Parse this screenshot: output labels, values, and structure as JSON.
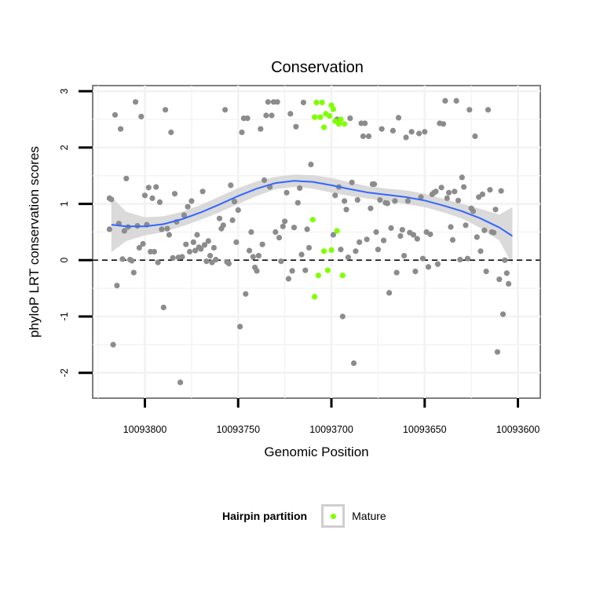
{
  "chart_data": {
    "type": "scatter",
    "title": "Conservation",
    "xlabel": "Genomic Position",
    "ylabel": "phyloP LRT conservation scores",
    "x_reversed": true,
    "xlim": [
      10093828,
      10093588
    ],
    "ylim": [
      -2.45,
      3.1
    ],
    "xticks": [
      10093800,
      10093750,
      10093700,
      10093650,
      10093600
    ],
    "xtick_labels": [
      "10093800",
      "10093750",
      "10093700",
      "10093650",
      "10093600"
    ],
    "yticks": [
      -2,
      -1,
      0,
      1,
      2,
      3
    ],
    "ytick_labels": [
      "-2",
      "-1",
      "0",
      "1",
      "2",
      "3"
    ],
    "hline": 0,
    "colors": {
      "other": "#8c8c8c",
      "mature": "#7fff00",
      "smooth": "#3366ff",
      "band": "#d3d3d3",
      "border": "#7f7f7f",
      "grid": "#f2f2f2"
    },
    "legend": {
      "title": "Hairpin partition",
      "entries": [
        "Mature"
      ],
      "placement": "bottom"
    },
    "series": [
      {
        "role": "other",
        "points": [
          [
            10093819,
            1.1
          ],
          [
            10093818,
            1.08
          ],
          [
            10093819,
            0.55
          ],
          [
            10093817,
            -1.5
          ],
          [
            10093816,
            2.58
          ],
          [
            10093815,
            -0.45
          ],
          [
            10093814,
            0.65
          ],
          [
            10093813,
            2.33
          ],
          [
            10093812,
            0.02
          ],
          [
            10093811,
            0.52
          ],
          [
            10093810,
            1.45
          ],
          [
            10093809,
            0.59
          ],
          [
            10093808,
            0.01
          ],
          [
            10093807,
            -0.01
          ],
          [
            10093806,
            -0.22
          ],
          [
            10093805,
            2.81
          ],
          [
            10093804,
            0.61
          ],
          [
            10093803,
            0.22
          ],
          [
            10093802,
            2.55
          ],
          [
            10093801,
            0.29
          ],
          [
            10093800,
            1.15
          ],
          [
            10093799,
            0.63
          ],
          [
            10093798,
            1.29
          ],
          [
            10093797,
            0.15
          ],
          [
            10093796,
            1.1
          ],
          [
            10093795,
            0.15
          ],
          [
            10093794,
            1.3
          ],
          [
            10093793,
            -0.04
          ],
          [
            10093792,
            1.03
          ],
          [
            10093791,
            0.55
          ],
          [
            10093790,
            -0.84
          ],
          [
            10093789,
            2.67
          ],
          [
            10093788,
            0.56
          ],
          [
            10093787,
            0.45
          ],
          [
            10093786,
            2.27
          ],
          [
            10093785,
            0.04
          ],
          [
            10093784,
            1.18
          ],
          [
            10093783,
            0.68
          ],
          [
            10093782,
            0.05
          ],
          [
            10093781,
            -2.17
          ],
          [
            10093780,
            0.06
          ],
          [
            10093779,
            0.8
          ],
          [
            10093778,
            0.28
          ],
          [
            10093777,
            0.95
          ],
          [
            10093776,
            0.15
          ],
          [
            10093775,
            1.05
          ],
          [
            10093774,
            0.32
          ],
          [
            10093773,
            0.17
          ],
          [
            10093772,
            0.45
          ],
          [
            10093771,
            0.23
          ],
          [
            10093770,
            0.2
          ],
          [
            10093769,
            1.22
          ],
          [
            10093768,
            0.27
          ],
          [
            10093767,
            -0.02
          ],
          [
            10093766,
            0.34
          ],
          [
            10093765,
            0.08
          ],
          [
            10093764,
            -0.04
          ],
          [
            10093763,
            0.22
          ],
          [
            10093762,
            0.01
          ],
          [
            10093760,
            0.74
          ],
          [
            10093759,
            0.56
          ],
          [
            10093758,
            0.62
          ],
          [
            10093757,
            2.67
          ],
          [
            10093756,
            -0.03
          ],
          [
            10093755,
            -0.06
          ],
          [
            10093754,
            1.33
          ],
          [
            10093753,
            0.71
          ],
          [
            10093752,
            1.04
          ],
          [
            10093751,
            0.32
          ],
          [
            10093750,
            0.89
          ],
          [
            10093749,
            -1.18
          ],
          [
            10093748,
            2.27
          ],
          [
            10093747,
            2.52
          ],
          [
            10093746,
            -0.6
          ],
          [
            10093745,
            2.52
          ],
          [
            10093744,
            0.17
          ],
          [
            10093743,
            0.5
          ],
          [
            10093742,
            0.06
          ],
          [
            10093741,
            -0.13
          ],
          [
            10093740,
            -0.19
          ],
          [
            10093739,
            0.08
          ],
          [
            10093738,
            2.33
          ],
          [
            10093737,
            0.28
          ],
          [
            10093736,
            1.42
          ],
          [
            10093735,
            2.57
          ],
          [
            10093734,
            2.81
          ],
          [
            10093733,
            1.3
          ],
          [
            10093732,
            2.57
          ],
          [
            10093731,
            2.81
          ],
          [
            10093730,
            0.5
          ],
          [
            10093729,
            2.81
          ],
          [
            10093728,
            0.4
          ],
          [
            10093727,
            -0.02
          ],
          [
            10093726,
            0.6
          ],
          [
            10093725,
            0.69
          ],
          [
            10093724,
            1.2
          ],
          [
            10093723,
            -0.33
          ],
          [
            10093722,
            2.6
          ],
          [
            10093721,
            -0.19
          ],
          [
            10093720,
            0.58
          ],
          [
            10093719,
            2.37
          ],
          [
            10093718,
            1.02
          ],
          [
            10093717,
            1.28
          ],
          [
            10093716,
            0.1
          ],
          [
            10093715,
            2.8
          ],
          [
            10093714,
            -0.18
          ],
          [
            10093713,
            0.55
          ],
          [
            10093712,
            0.22
          ],
          [
            10093711,
            1.7
          ],
          [
            10093699,
            0.45
          ],
          [
            10093698,
            1.15
          ],
          [
            10093697,
            2.5
          ],
          [
            10093696,
            1.3
          ],
          [
            10093695,
            0.19
          ],
          [
            10093694,
            -1.0
          ],
          [
            10093693,
            1.05
          ],
          [
            10093692,
            0.9
          ],
          [
            10093691,
            0.05
          ],
          [
            10093690,
            2.52
          ],
          [
            10093689,
            1.38
          ],
          [
            10093688,
            -1.83
          ],
          [
            10093687,
            0.16
          ],
          [
            10093686,
            1.07
          ],
          [
            10093685,
            0.32
          ],
          [
            10093684,
            2.43
          ],
          [
            10093683,
            2.2
          ],
          [
            10093682,
            2.43
          ],
          [
            10093681,
            0.37
          ],
          [
            10093680,
            2.2
          ],
          [
            10093679,
            0.92
          ],
          [
            10093678,
            1.35
          ],
          [
            10093677,
            1.35
          ],
          [
            10093676,
            0.5
          ],
          [
            10093675,
            0.19
          ],
          [
            10093674,
            1.07
          ],
          [
            10093673,
            2.33
          ],
          [
            10093672,
            0.35
          ],
          [
            10093671,
            1.02
          ],
          [
            10093670,
            1.01
          ],
          [
            10093669,
            -0.58
          ],
          [
            10093668,
            0.57
          ],
          [
            10093667,
            2.3
          ],
          [
            10093666,
            1.05
          ],
          [
            10093665,
            -0.22
          ],
          [
            10093664,
            2.53
          ],
          [
            10093663,
            0.43
          ],
          [
            10093662,
            0.54
          ],
          [
            10093661,
            0.08
          ],
          [
            10093660,
            2.18
          ],
          [
            10093659,
            1.05
          ],
          [
            10093658,
            0.49
          ],
          [
            10093657,
            2.28
          ],
          [
            10093656,
            0.45
          ],
          [
            10093655,
            -0.2
          ],
          [
            10093654,
            0.38
          ],
          [
            10093653,
            2.25
          ],
          [
            10093652,
            1.12
          ],
          [
            10093651,
            0.03
          ],
          [
            10093650,
            2.28
          ],
          [
            10093649,
            0.5
          ],
          [
            10093648,
            -0.12
          ],
          [
            10093647,
            0.46
          ],
          [
            10093646,
            1.17
          ],
          [
            10093645,
            1.2
          ],
          [
            10093644,
            1.22
          ],
          [
            10093643,
            -0.07
          ],
          [
            10093642,
            2.43
          ],
          [
            10093641,
            1.29
          ],
          [
            10093640,
            2.42
          ],
          [
            10093639,
            2.83
          ],
          [
            10093638,
            1.1
          ],
          [
            10093637,
            1.2
          ],
          [
            10093636,
            0.59
          ],
          [
            10093635,
            0.36
          ],
          [
            10093634,
            1.22
          ],
          [
            10093633,
            2.83
          ],
          [
            10093632,
            1.06
          ],
          [
            10093631,
            0.01
          ],
          [
            10093630,
            1.47
          ],
          [
            10093629,
            1.3
          ],
          [
            10093628,
            0.62
          ],
          [
            10093627,
            0.03
          ],
          [
            10093626,
            2.67
          ],
          [
            10093625,
            0.92
          ],
          [
            10093624,
            0.87
          ],
          [
            10093623,
            2.2
          ],
          [
            10093622,
            0.41
          ],
          [
            10093621,
            1.12
          ],
          [
            10093620,
            0.16
          ],
          [
            10093619,
            1.17
          ],
          [
            10093618,
            0.53
          ],
          [
            10093617,
            -0.2
          ],
          [
            10093616,
            2.67
          ],
          [
            10093615,
            1.25
          ],
          [
            10093614,
            0.5
          ],
          [
            10093613,
            0.49
          ],
          [
            10093612,
            0.9
          ],
          [
            10093611,
            -1.63
          ],
          [
            10093610,
            -0.34
          ],
          [
            10093609,
            1.23
          ],
          [
            10093608,
            -0.96
          ],
          [
            10093607,
            0.0
          ],
          [
            10093606,
            -0.23
          ],
          [
            10093605,
            -0.42
          ]
        ]
      },
      {
        "role": "mature",
        "name": "Mature",
        "points": [
          [
            10093710,
            0.72
          ],
          [
            10093709,
            2.54
          ],
          [
            10093709,
            -0.65
          ],
          [
            10093708,
            2.8
          ],
          [
            10093707,
            -0.27
          ],
          [
            10093706,
            2.54
          ],
          [
            10093705,
            2.8
          ],
          [
            10093704,
            0.16
          ],
          [
            10093704,
            2.36
          ],
          [
            10093703,
            2.6
          ],
          [
            10093702,
            -0.18
          ],
          [
            10093701,
            2.56
          ],
          [
            10093700,
            0.18
          ],
          [
            10093700,
            2.75
          ],
          [
            10093699,
            2.68
          ],
          [
            10093698,
            2.47
          ],
          [
            10093697,
            0.52
          ],
          [
            10093696,
            2.42
          ],
          [
            10093695,
            2.5
          ],
          [
            10093694,
            -0.27
          ],
          [
            10093693,
            2.42
          ]
        ]
      }
    ],
    "smooth": {
      "method": "loess",
      "line": [
        [
          10093818,
          0.63
        ],
        [
          10093810,
          0.6
        ],
        [
          10093800,
          0.6
        ],
        [
          10093790,
          0.64
        ],
        [
          10093780,
          0.73
        ],
        [
          10093770,
          0.85
        ],
        [
          10093760,
          0.99
        ],
        [
          10093750,
          1.14
        ],
        [
          10093740,
          1.27
        ],
        [
          10093730,
          1.37
        ],
        [
          10093720,
          1.41
        ],
        [
          10093710,
          1.39
        ],
        [
          10093700,
          1.33
        ],
        [
          10093690,
          1.26
        ],
        [
          10093680,
          1.2
        ],
        [
          10093670,
          1.16
        ],
        [
          10093660,
          1.12
        ],
        [
          10093650,
          1.06
        ],
        [
          10093640,
          0.97
        ],
        [
          10093630,
          0.87
        ],
        [
          10093620,
          0.74
        ],
        [
          10093610,
          0.58
        ],
        [
          10093603,
          0.43
        ]
      ],
      "lower": [
        [
          10093818,
          0.14
        ],
        [
          10093810,
          0.34
        ],
        [
          10093800,
          0.44
        ],
        [
          10093790,
          0.5
        ],
        [
          10093780,
          0.6
        ],
        [
          10093770,
          0.72
        ],
        [
          10093760,
          0.85
        ],
        [
          10093750,
          1.0
        ],
        [
          10093740,
          1.14
        ],
        [
          10093730,
          1.26
        ],
        [
          10093720,
          1.3
        ],
        [
          10093710,
          1.27
        ],
        [
          10093700,
          1.2
        ],
        [
          10093690,
          1.14
        ],
        [
          10093680,
          1.09
        ],
        [
          10093670,
          1.05
        ],
        [
          10093660,
          1.0
        ],
        [
          10093650,
          0.94
        ],
        [
          10093640,
          0.85
        ],
        [
          10093630,
          0.74
        ],
        [
          10093620,
          0.57
        ],
        [
          10093610,
          0.35
        ],
        [
          10093603,
          -0.08
        ]
      ],
      "upper": [
        [
          10093818,
          1.12
        ],
        [
          10093810,
          0.86
        ],
        [
          10093800,
          0.76
        ],
        [
          10093790,
          0.78
        ],
        [
          10093780,
          0.86
        ],
        [
          10093770,
          0.98
        ],
        [
          10093760,
          1.13
        ],
        [
          10093750,
          1.28
        ],
        [
          10093740,
          1.4
        ],
        [
          10093730,
          1.48
        ],
        [
          10093720,
          1.52
        ],
        [
          10093710,
          1.51
        ],
        [
          10093700,
          1.46
        ],
        [
          10093690,
          1.38
        ],
        [
          10093680,
          1.31
        ],
        [
          10093670,
          1.27
        ],
        [
          10093660,
          1.24
        ],
        [
          10093650,
          1.18
        ],
        [
          10093640,
          1.09
        ],
        [
          10093630,
          1.0
        ],
        [
          10093620,
          0.91
        ],
        [
          10093610,
          0.81
        ],
        [
          10093603,
          0.94
        ]
      ]
    }
  }
}
